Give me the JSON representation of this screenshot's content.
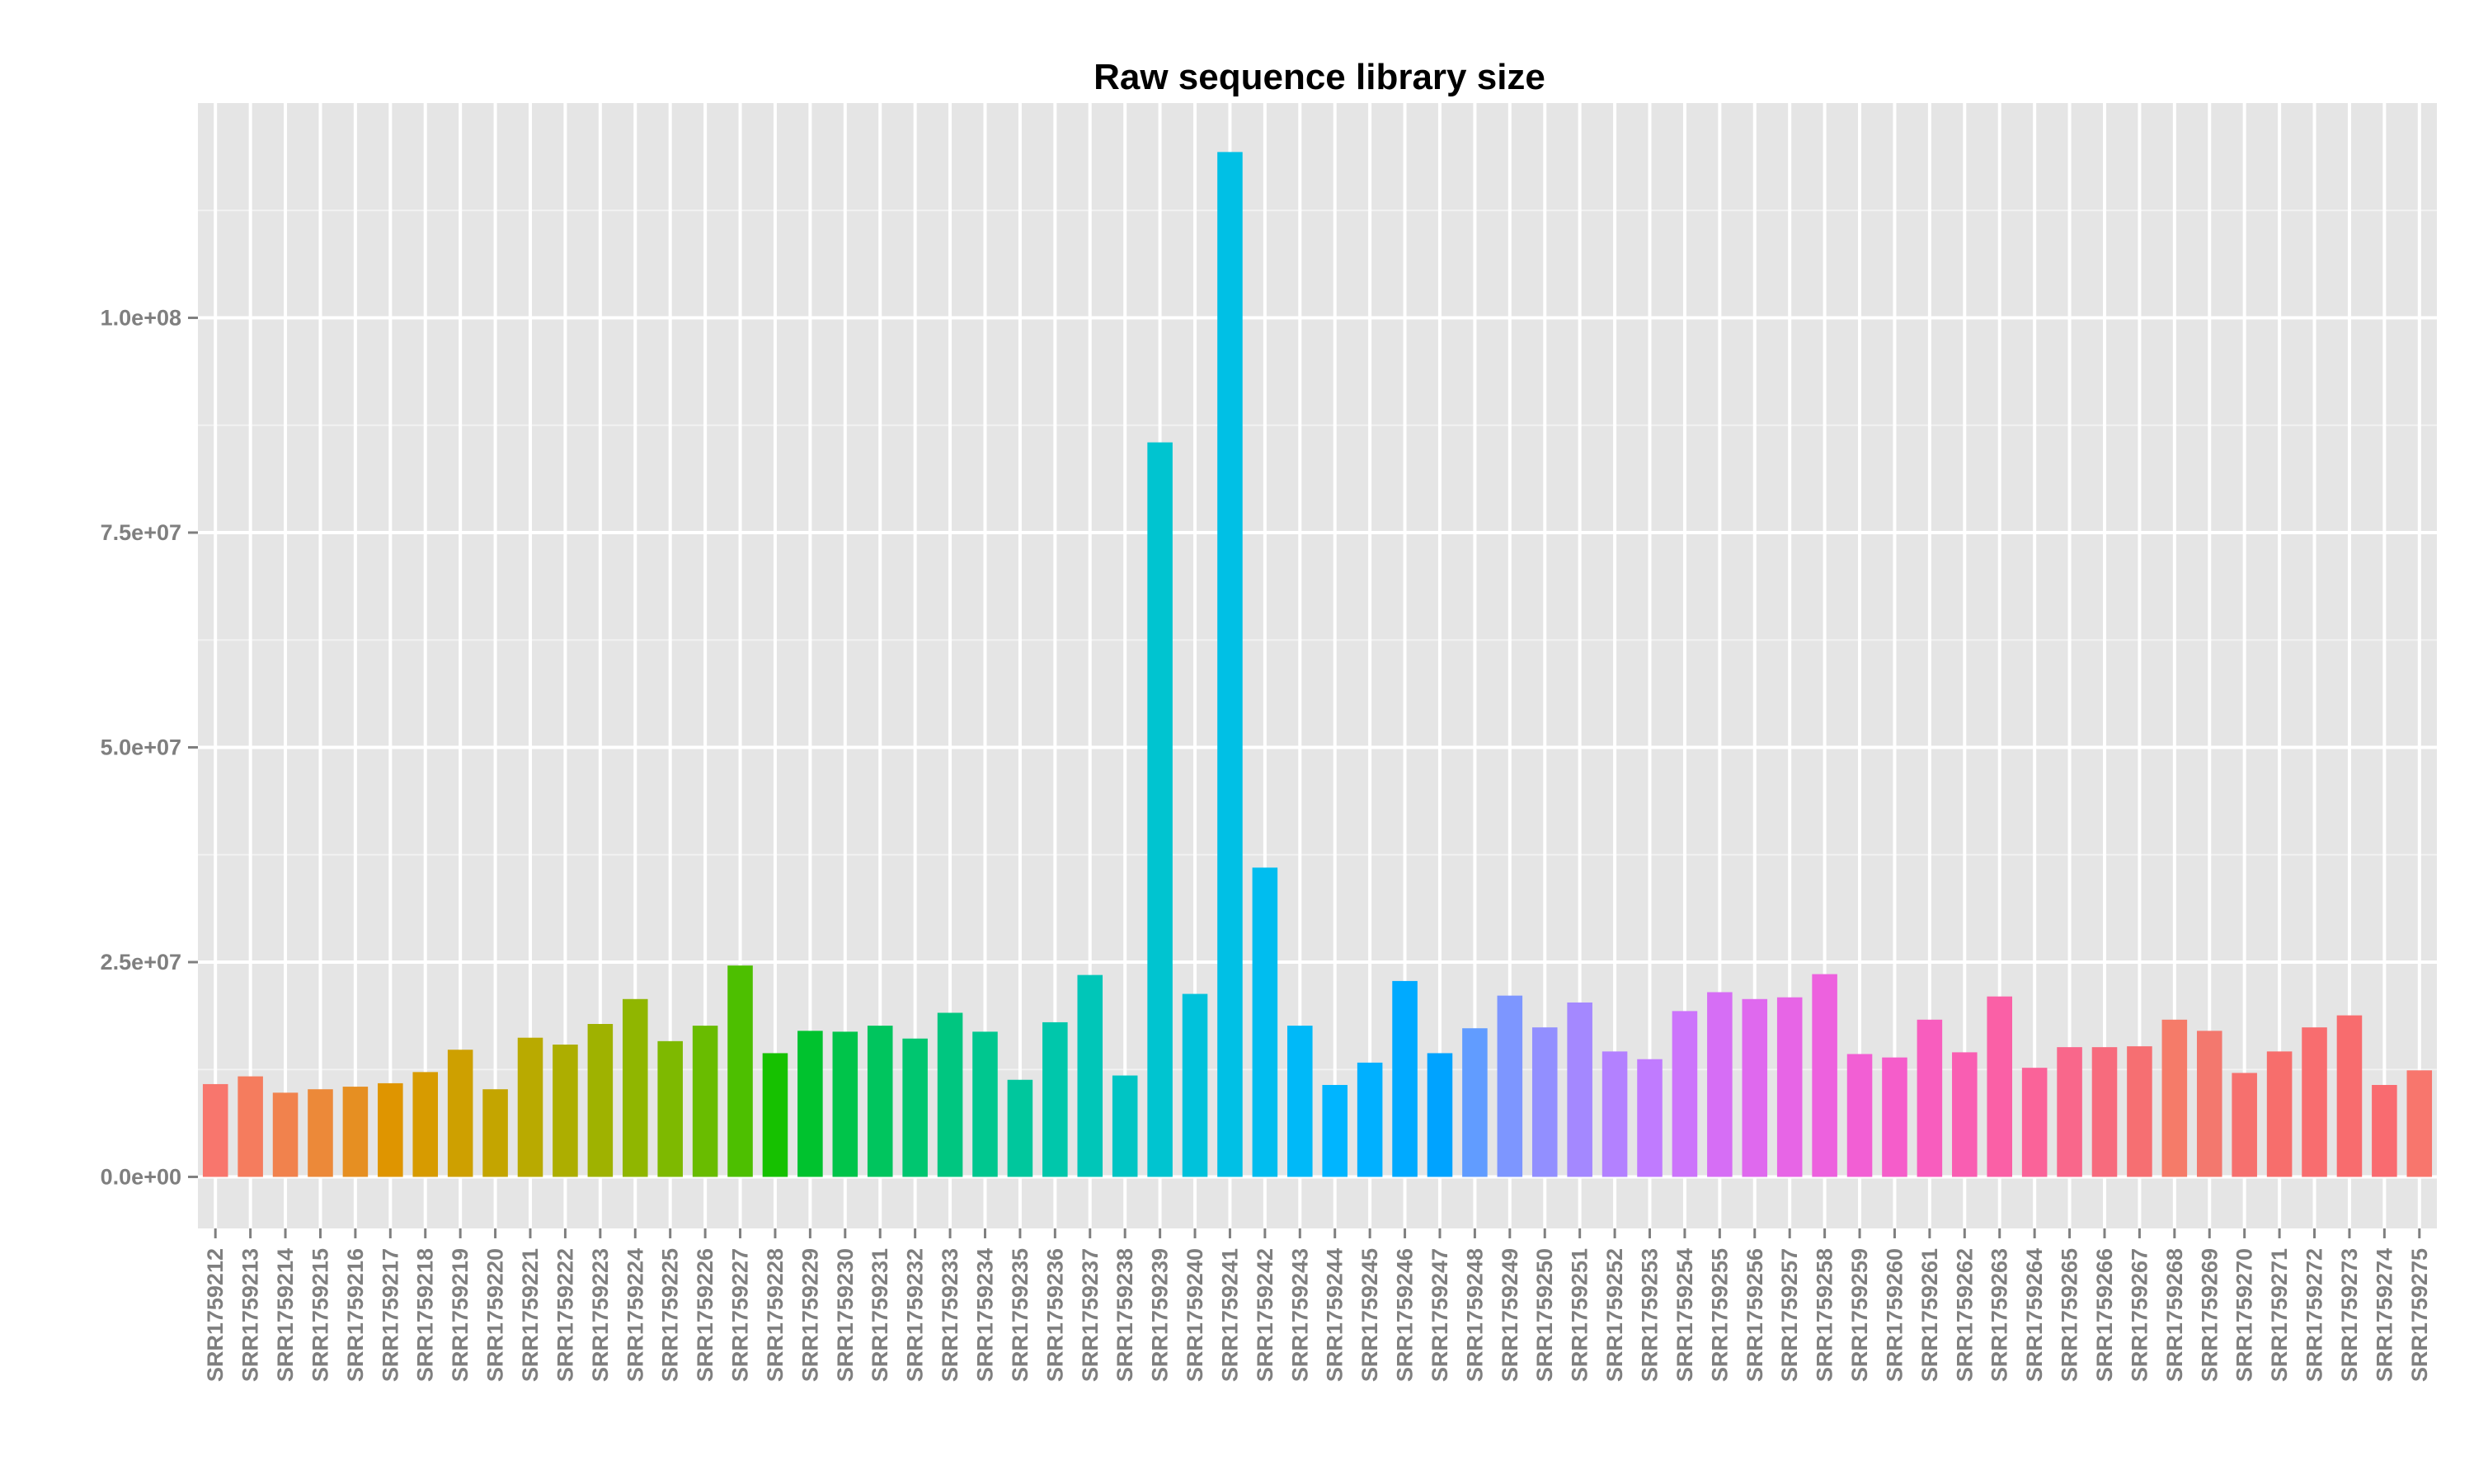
{
  "chart_data": {
    "type": "bar",
    "title": "Raw sequence library size",
    "xlabel": "",
    "ylabel": "",
    "ylim": [
      -6000000,
      125000000
    ],
    "yticks": [
      {
        "value": 0,
        "label": "0.0e+00"
      },
      {
        "value": 25000000,
        "label": "2.5e+07"
      },
      {
        "value": 50000000,
        "label": "5.0e+07"
      },
      {
        "value": 75000000,
        "label": "7.5e+07"
      },
      {
        "value": 100000000,
        "label": "1.0e+08"
      }
    ],
    "grid": true,
    "legend": "none",
    "categories": [
      "SRR1759212",
      "SRR1759213",
      "SRR1759214",
      "SRR1759215",
      "SRR1759216",
      "SRR1759217",
      "SRR1759218",
      "SRR1759219",
      "SRR1759220",
      "SRR1759221",
      "SRR1759222",
      "SRR1759223",
      "SRR1759224",
      "SRR1759225",
      "SRR1759226",
      "SRR1759227",
      "SRR1759228",
      "SRR1759229",
      "SRR1759230",
      "SRR1759231",
      "SRR1759232",
      "SRR1759233",
      "SRR1759234",
      "SRR1759235",
      "SRR1759236",
      "SRR1759237",
      "SRR1759238",
      "SRR1759239",
      "SRR1759240",
      "SRR1759241",
      "SRR1759242",
      "SRR1759243",
      "SRR1759244",
      "SRR1759245",
      "SRR1759246",
      "SRR1759247",
      "SRR1759248",
      "SRR1759249",
      "SRR1759250",
      "SRR1759251",
      "SRR1759252",
      "SRR1759253",
      "SRR1759254",
      "SRR1759255",
      "SRR1759256",
      "SRR1759257",
      "SRR1759258",
      "SRR1759259",
      "SRR1759260",
      "SRR1759261",
      "SRR1759262",
      "SRR1759263",
      "SRR1759264",
      "SRR1759265",
      "SRR1759266",
      "SRR1759267",
      "SRR1759268",
      "SRR1759269",
      "SRR1759270",
      "SRR1759271",
      "SRR1759272",
      "SRR1759273",
      "SRR1759274",
      "SRR1759275"
    ],
    "values": [
      10800000,
      11700000,
      9800000,
      10200000,
      10500000,
      10900000,
      12200000,
      14800000,
      10200000,
      16200000,
      15400000,
      17800000,
      20700000,
      15800000,
      17600000,
      24600000,
      14400000,
      17000000,
      16900000,
      17600000,
      16100000,
      19100000,
      16900000,
      11300000,
      18000000,
      23500000,
      11800000,
      85500000,
      21300000,
      119300000,
      36000000,
      17600000,
      10700000,
      13300000,
      22800000,
      14400000,
      17300000,
      21100000,
      17400000,
      20300000,
      14600000,
      13700000,
      19300000,
      21500000,
      20700000,
      20900000,
      23600000,
      14300000,
      13900000,
      18300000,
      14500000,
      21000000,
      12700000,
      15100000,
      15100000,
      15200000,
      18300000,
      17000000,
      12100000,
      14600000,
      17400000,
      18800000,
      10700000,
      12400000
    ],
    "colors": [
      "#F8766D",
      "#F57C5E",
      "#F1824D",
      "#EC8939",
      "#E68F22",
      "#DF9500",
      "#D79B00",
      "#CEA000",
      "#C4A500",
      "#B9AA00",
      "#ADAE00",
      "#9FB200",
      "#90B600",
      "#7EB900",
      "#69BC00",
      "#4DBF00",
      "#16C100",
      "#00C22E",
      "#00C44A",
      "#00C55E",
      "#00C670",
      "#00C680",
      "#00C78F",
      "#00C79D",
      "#00C7AB",
      "#00C6B8",
      "#00C5C4",
      "#00C4D0",
      "#00C2DB",
      "#00C0E5",
      "#00BDEF",
      "#00B9F8",
      "#00B5FF",
      "#00B0FF",
      "#00AAFF",
      "#00A3FF",
      "#619CFF",
      "#7D96FF",
      "#928FFF",
      "#A488FF",
      "#B381FF",
      "#C07BFF",
      "#CC74FB",
      "#D66EF5",
      "#DF69EE",
      "#E765E6",
      "#ED61DE",
      "#F25FD4",
      "#F55DCA",
      "#F85DBE",
      "#F95EB2",
      "#FA60A6",
      "#FA6399",
      "#F9678B",
      "#F76B7D",
      "#F66F72",
      "#F57B69",
      "#F3786E",
      "#F6706E",
      "#F76E6C",
      "#F86D6F",
      "#F86C6E",
      "#F96B70",
      "#F8766D"
    ]
  }
}
